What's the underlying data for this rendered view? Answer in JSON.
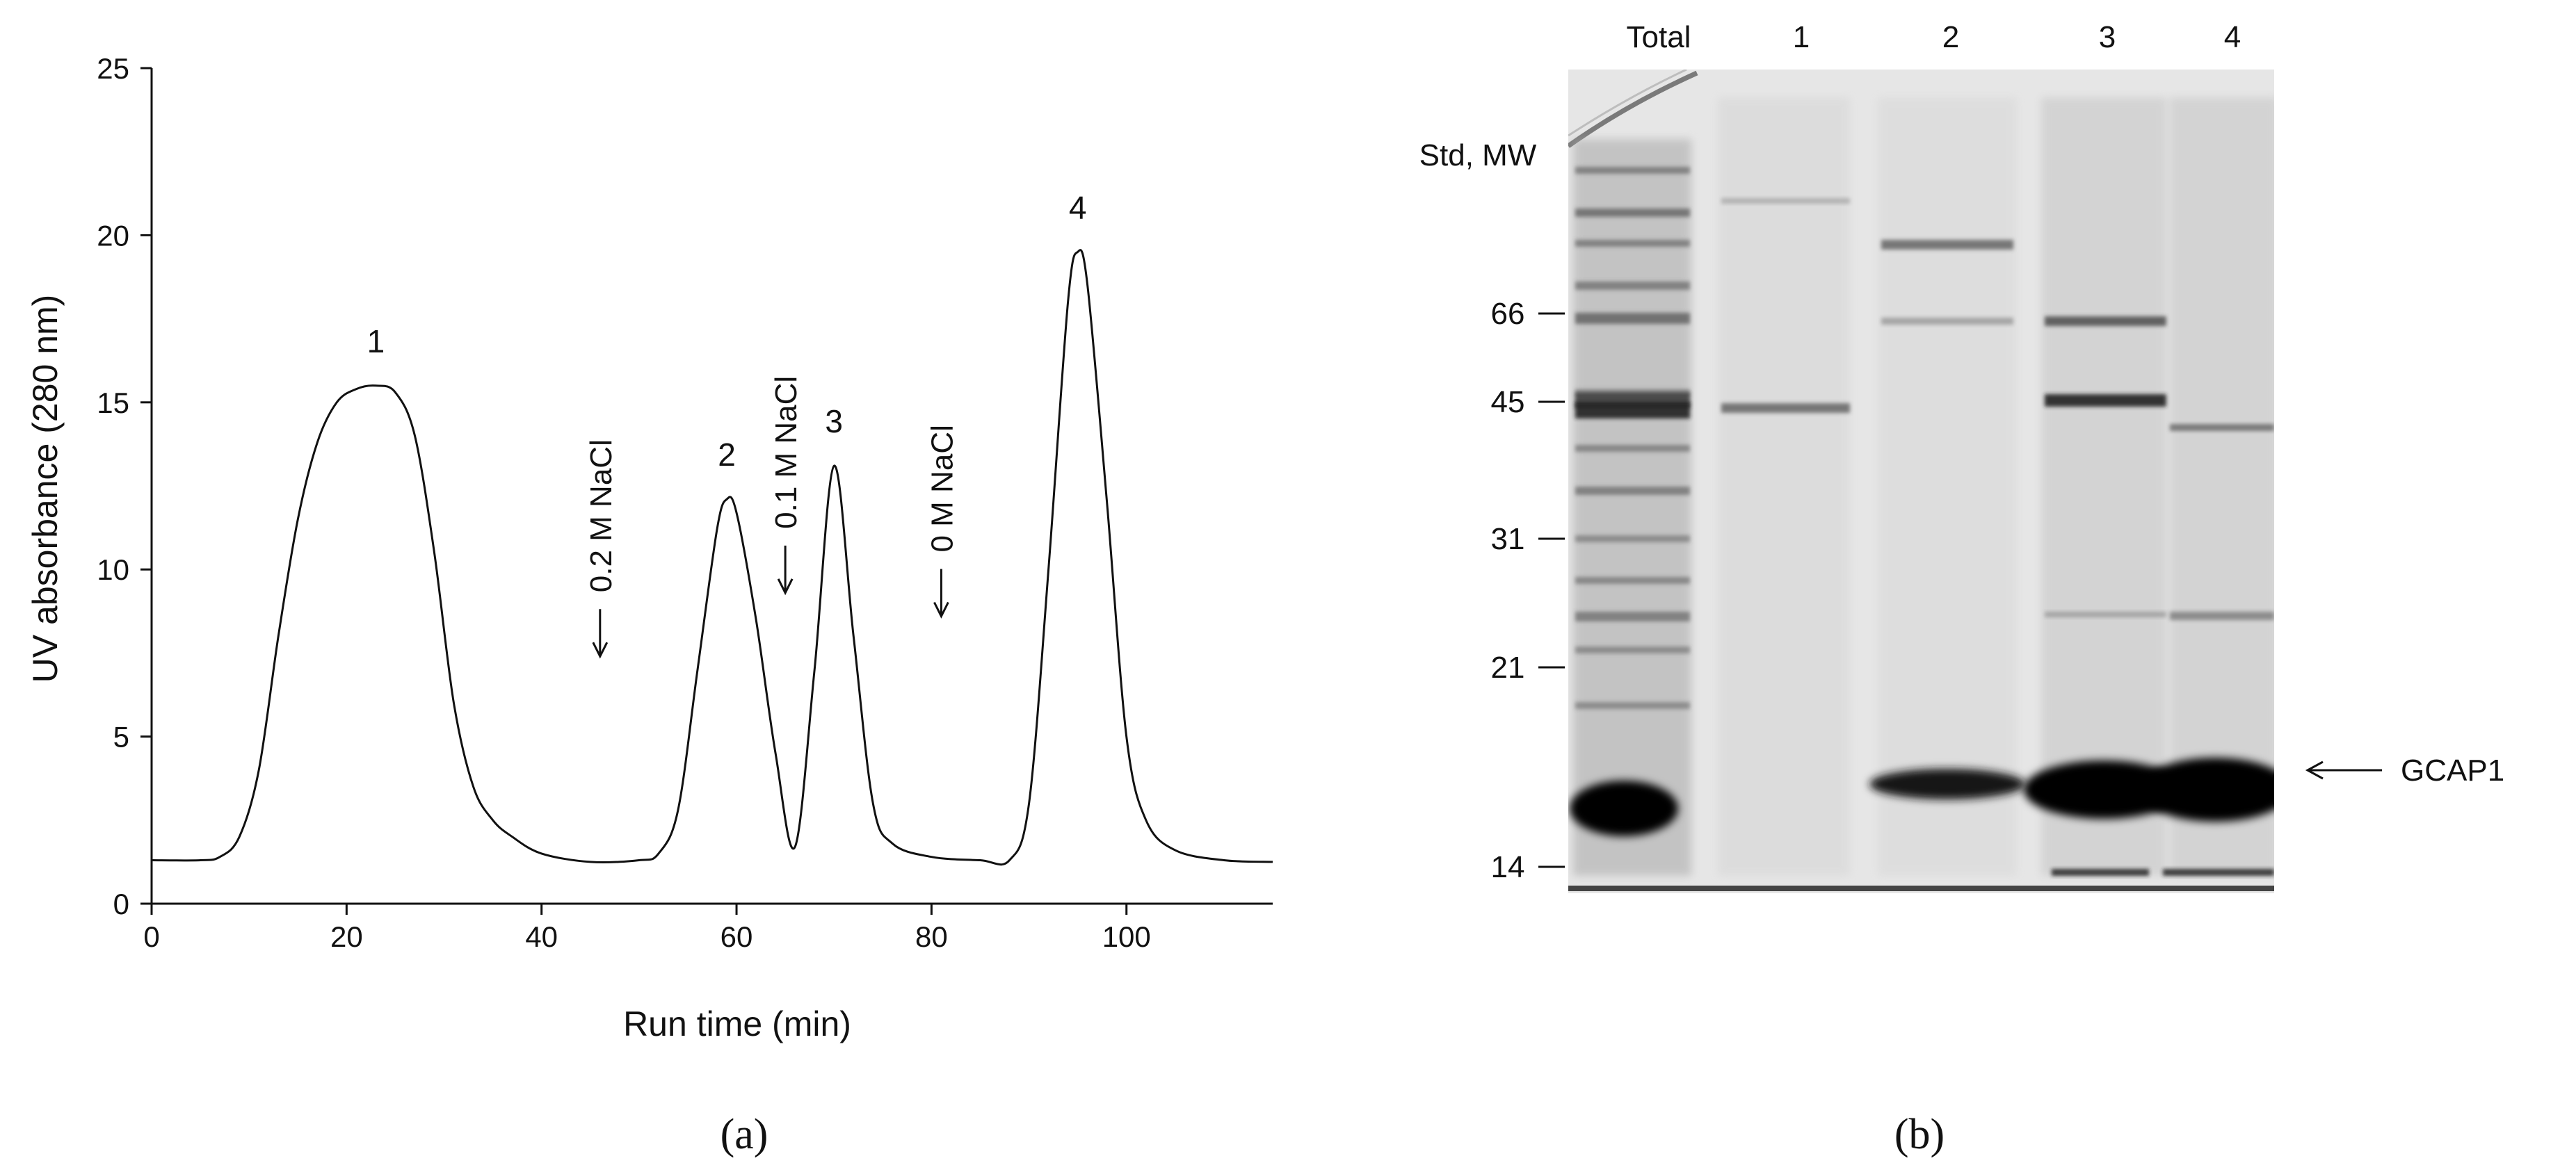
{
  "chart_data": [
    {
      "type": "line",
      "panel_label": "(a)",
      "xlabel": "Run time (min)",
      "ylabel": "UV absorbance (280 nm)",
      "xlim": [
        0,
        115
      ],
      "ylim": [
        0,
        25
      ],
      "xticks": [
        0,
        20,
        40,
        60,
        80,
        100
      ],
      "yticks": [
        0,
        5,
        10,
        15,
        20,
        25
      ],
      "grid": false,
      "series": [
        {
          "x": [
            0,
            5,
            7,
            9,
            11,
            13,
            15,
            17,
            19,
            21,
            23,
            25,
            27,
            29,
            31,
            33,
            35,
            37,
            40,
            45,
            50,
            52,
            54,
            56,
            58,
            59,
            60,
            62,
            64,
            66,
            68,
            70,
            72,
            74,
            76,
            80,
            85,
            88,
            90,
            92,
            94,
            95,
            96,
            98,
            100,
            102,
            105,
            110,
            115
          ],
          "y": [
            1.3,
            1.3,
            1.4,
            2.0,
            4.0,
            8.0,
            11.5,
            13.8,
            15.0,
            15.4,
            15.5,
            15.3,
            14.0,
            10.5,
            6.0,
            3.5,
            2.5,
            2.0,
            1.5,
            1.25,
            1.3,
            1.5,
            2.8,
            7.0,
            11.2,
            12.1,
            11.7,
            8.5,
            4.5,
            1.7,
            7.0,
            13.1,
            8.0,
            3.0,
            1.8,
            1.4,
            1.3,
            1.3,
            3.0,
            10.0,
            18.0,
            19.5,
            18.5,
            12.0,
            5.0,
            2.5,
            1.6,
            1.3,
            1.25
          ]
        }
      ],
      "peak_labels": [
        {
          "text": "1",
          "x": 23,
          "y": 15.5
        },
        {
          "text": "2",
          "x": 59,
          "y": 12.1
        },
        {
          "text": "3",
          "x": 70,
          "y": 13.1
        },
        {
          "text": "4",
          "x": 95,
          "y": 19.5
        }
      ],
      "annotations": [
        {
          "text": "0.2 M NaCl",
          "x": 46,
          "arrow_tip_y": 7.4
        },
        {
          "text": "0.1 M NaCl",
          "x": 65,
          "arrow_tip_y": 9.3
        },
        {
          "text": "0 M NaCl",
          "x": 81,
          "arrow_tip_y": 8.6
        }
      ]
    },
    {
      "type": "gel",
      "panel_label": "(b)",
      "lane_labels": [
        "Total",
        "1",
        "2",
        "3",
        "4"
      ],
      "mw_title": "Std, MW",
      "mw_markers": [
        "66",
        "45",
        "31",
        "21",
        "14"
      ],
      "band_label": "GCAP1",
      "gel_background": "#e6e6e6"
    }
  ]
}
